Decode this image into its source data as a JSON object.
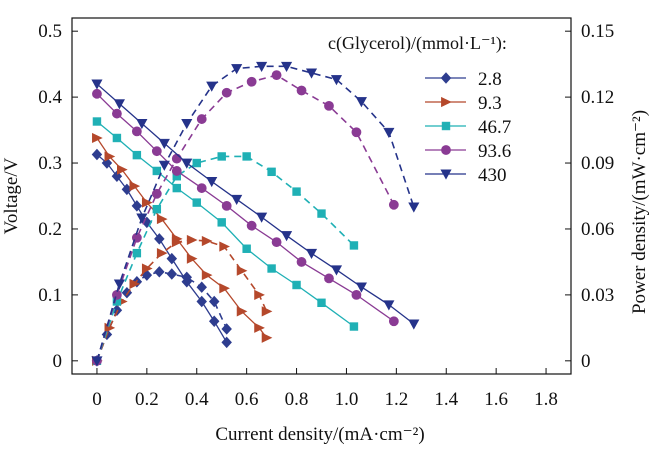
{
  "chart_data": {
    "type": "line",
    "legend_title": "c(Glycerol)/(mmol·L⁻¹):",
    "xlabel": "Current density/(mA·cm⁻²)",
    "ylabel": "Voltage/V",
    "y2label": "Power density/(mW·cm⁻²)",
    "xlim": [
      -0.1,
      1.9
    ],
    "ylim": [
      -0.02,
      0.52
    ],
    "y2lim": [
      -0.006,
      0.156
    ],
    "xticks": [
      "0",
      "0.2",
      "0.4",
      "0.6",
      "0.8",
      "1.0",
      "1.2",
      "1.4",
      "1.6",
      "1.8"
    ],
    "xtick_values": [
      0,
      0.2,
      0.4,
      0.6,
      0.8,
      1.0,
      1.2,
      1.4,
      1.6,
      1.8
    ],
    "yticks": [
      "0",
      "0.1",
      "0.2",
      "0.3",
      "0.4",
      "0.5"
    ],
    "ytick_values": [
      0,
      0.1,
      0.2,
      0.3,
      0.4,
      0.5
    ],
    "y2ticks": [
      "0",
      "0.03",
      "0.06",
      "0.09",
      "0.12",
      "0.15"
    ],
    "y2tick_values": [
      0,
      0.03,
      0.06,
      0.09,
      0.12,
      0.15
    ],
    "series": [
      {
        "name": "2.8",
        "color": "#2e3d8f",
        "marker": "diamond",
        "voltage": {
          "x": [
            0,
            0.04,
            0.08,
            0.12,
            0.16,
            0.2,
            0.25,
            0.3,
            0.36,
            0.42,
            0.47,
            0.52
          ],
          "y": [
            0.313,
            0.3,
            0.28,
            0.26,
            0.235,
            0.21,
            0.185,
            0.155,
            0.12,
            0.09,
            0.06,
            0.028
          ]
        },
        "power": {
          "x": [
            0,
            0.04,
            0.08,
            0.12,
            0.16,
            0.2,
            0.25,
            0.3,
            0.36,
            0.42,
            0.47,
            0.52
          ],
          "y": [
            0,
            0.012,
            0.023,
            0.031,
            0.036,
            0.039,
            0.0405,
            0.0395,
            0.038,
            0.0335,
            0.027,
            0.0145
          ]
        }
      },
      {
        "name": "9.3",
        "color": "#b5482b",
        "marker": "triangle-right",
        "voltage": {
          "x": [
            0,
            0.05,
            0.1,
            0.15,
            0.2,
            0.26,
            0.32,
            0.38,
            0.44,
            0.51,
            0.58,
            0.65,
            0.68
          ],
          "y": [
            0.338,
            0.31,
            0.29,
            0.265,
            0.24,
            0.215,
            0.185,
            0.155,
            0.13,
            0.11,
            0.075,
            0.05,
            0.035
          ]
        },
        "power": {
          "x": [
            0,
            0.05,
            0.1,
            0.15,
            0.2,
            0.26,
            0.32,
            0.38,
            0.44,
            0.51,
            0.58,
            0.65,
            0.68
          ],
          "y": [
            0,
            0.015,
            0.027,
            0.035,
            0.042,
            0.049,
            0.054,
            0.055,
            0.0545,
            0.052,
            0.041,
            0.03,
            0.0225
          ]
        }
      },
      {
        "name": "46.7",
        "color": "#1fb0b5",
        "marker": "square",
        "voltage": {
          "x": [
            0,
            0.08,
            0.16,
            0.24,
            0.32,
            0.4,
            0.5,
            0.6,
            0.7,
            0.8,
            0.9,
            1.03
          ],
          "y": [
            0.363,
            0.338,
            0.312,
            0.288,
            0.262,
            0.24,
            0.21,
            0.17,
            0.14,
            0.115,
            0.088,
            0.052
          ]
        },
        "power": {
          "x": [
            0,
            0.08,
            0.16,
            0.24,
            0.32,
            0.4,
            0.5,
            0.6,
            0.7,
            0.8,
            0.9,
            1.03
          ],
          "y": [
            0,
            0.027,
            0.049,
            0.069,
            0.084,
            0.09,
            0.093,
            0.093,
            0.086,
            0.077,
            0.067,
            0.0525
          ]
        }
      },
      {
        "name": "93.6",
        "color": "#8a3b94",
        "marker": "circle",
        "voltage": {
          "x": [
            0,
            0.08,
            0.16,
            0.24,
            0.32,
            0.42,
            0.52,
            0.62,
            0.72,
            0.82,
            0.93,
            1.04,
            1.19
          ],
          "y": [
            0.405,
            0.375,
            0.348,
            0.318,
            0.288,
            0.262,
            0.235,
            0.205,
            0.18,
            0.15,
            0.125,
            0.1,
            0.06
          ]
        },
        "power": {
          "x": [
            0,
            0.08,
            0.16,
            0.24,
            0.32,
            0.42,
            0.52,
            0.62,
            0.72,
            0.82,
            0.93,
            1.04,
            1.19
          ],
          "y": [
            0,
            0.03,
            0.056,
            0.076,
            0.092,
            0.11,
            0.122,
            0.127,
            0.13,
            0.123,
            0.116,
            0.104,
            0.071
          ]
        }
      },
      {
        "name": "430",
        "color": "#25338a",
        "marker": "triangle-down",
        "voltage": {
          "x": [
            0,
            0.09,
            0.18,
            0.27,
            0.36,
            0.46,
            0.56,
            0.66,
            0.76,
            0.86,
            0.96,
            1.06,
            1.17,
            1.27
          ],
          "y": [
            0.42,
            0.39,
            0.36,
            0.33,
            0.3,
            0.272,
            0.245,
            0.218,
            0.19,
            0.163,
            0.138,
            0.112,
            0.085,
            0.056
          ]
        },
        "power": {
          "x": [
            0,
            0.09,
            0.18,
            0.27,
            0.36,
            0.46,
            0.56,
            0.66,
            0.76,
            0.86,
            0.96,
            1.06,
            1.17,
            1.27
          ],
          "y": [
            0,
            0.035,
            0.065,
            0.089,
            0.108,
            0.125,
            0.133,
            0.134,
            0.134,
            0.131,
            0.128,
            0.118,
            0.104,
            0.07
          ]
        }
      }
    ]
  }
}
